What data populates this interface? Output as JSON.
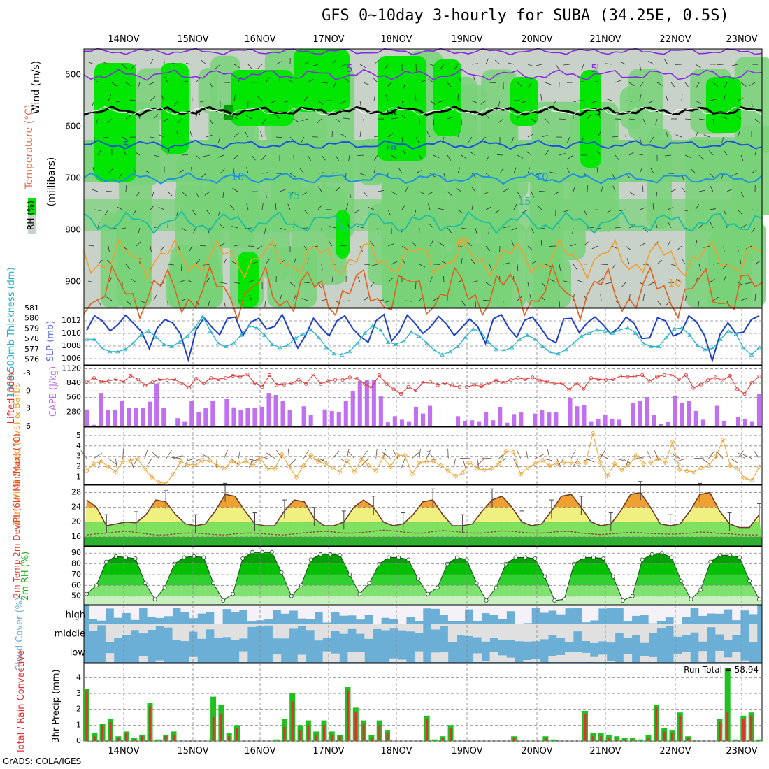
{
  "title": "GFS 0~10day 3-hourly for SUBA (34.25E, 0.5S)",
  "credit": "GrADS: COLA/IGES",
  "dates": [
    "14NOV",
    "15NOV",
    "16NOV",
    "17NOV",
    "18NOV",
    "19NOV",
    "20NOV",
    "21NOV",
    "22NOV",
    "23NOV"
  ],
  "colors": {
    "rh_light": "#c8d2c8",
    "rh_mid": "#78d278",
    "rh_high": "#00e600",
    "rh_top": "#00a000",
    "cape": "#c070f0",
    "precip_total": "#20c020",
    "precip_conv": "#e03030",
    "cloud_blue": "#6baed6",
    "cloud_gray": "#e0e0e0",
    "wind10": "#f0a030",
    "temp_fill_hot": "#f0a030",
    "temp_fill_warm": "#f0f080"
  },
  "chart_data": [
    {
      "panel": "upper_air",
      "type": "heatmap",
      "ylabel_parts": [
        "Wind (m/s)",
        "Temperature (°C)",
        "RH (%)"
      ],
      "ylabel_units": "(millibars)",
      "ylim": [
        950,
        450
      ],
      "yticks": [
        500,
        600,
        700,
        800,
        900
      ],
      "isotherm_labels": [
        "5",
        "5",
        "5",
        "FR",
        "FR",
        "FR",
        "5",
        "5",
        "10",
        "10",
        "15",
        "15",
        "20",
        "10"
      ]
    },
    {
      "panel": "thickness_slp",
      "type": "line",
      "ylabel_left": "1000-500mb Thickness (dm)",
      "ylabel_right": "SLP (mb)",
      "yticks_left": [
        576,
        577,
        578,
        579,
        580,
        581
      ],
      "yticks_right": [
        1006,
        1008,
        1010,
        1012
      ],
      "series": [
        {
          "name": "SLP (mb)",
          "values": [
            1010.5,
            1012.8,
            1012,
            1010.4,
            1011.4,
            1012.9,
            1011.6,
            1010.3,
            1007.6,
            1010.8,
            1012.2,
            1011.7,
            1009.9,
            1005.8,
            1010.6,
            1012.5,
            1011,
            1009.8,
            1012.4,
            1012.6,
            1009.7,
            1011.8,
            1012.4,
            1010.7,
            1011.1,
            1013,
            1010.2,
            1007.7,
            1009.7,
            1012.4,
            1010.9,
            1009.6,
            1012,
            1012.8,
            1010.8,
            1009.5,
            1008.6,
            1012,
            1013,
            1008.8,
            1010.3,
            1012.9,
            1011.6,
            1010,
            1011.1,
            1012.7,
            1011.5,
            1009.7,
            1011,
            1012.3,
            1011.1,
            1008.4,
            1012.3,
            1013,
            1010.8,
            1009.4,
            1012.1,
            1012.6,
            1011,
            1009.2,
            1008.5,
            1012.3,
            1012.4,
            1010.1,
            1011.7,
            1012.6,
            1011.4,
            1010,
            1010.9,
            1012.6,
            1011.6,
            1009.2,
            1009.3,
            1012.5,
            1012,
            1009.6,
            1010.1,
            1012.8,
            1011.8,
            1009.7,
            1005.7,
            1009.9,
            1011.7,
            1010,
            1010.2,
            1012.2,
            1012.8
          ]
        },
        {
          "name": "1000-500mb Thickness (dm)",
          "values": [
            578,
            578,
            577.1,
            576.8,
            576.8,
            577,
            577.6,
            578.4,
            578.8,
            578.2,
            577.5,
            577.3,
            577.7,
            578.3,
            579.1,
            580.2,
            578.8,
            577.6,
            577.3,
            577.6,
            578.4,
            579.3,
            579.1,
            578.4,
            577.5,
            577.2,
            577.4,
            578.1,
            578.5,
            578.9,
            578.2,
            577.2,
            576.6,
            576.5,
            576.8,
            577.6,
            578.6,
            579.3,
            578.9,
            577.7,
            577.5,
            577.8,
            578.7,
            578.3,
            577.6,
            576.9,
            576.5,
            576.8,
            577.3,
            578.2,
            579,
            578.7,
            577.7,
            577,
            576.9,
            577.2,
            578,
            578.4,
            578,
            577.3,
            576.7,
            576.6,
            577,
            577.6,
            578.3,
            578.6,
            578.9,
            578.8,
            578.6,
            578.9,
            579.1,
            578.6,
            577.6,
            577.3,
            577.3,
            578.2,
            579,
            579.1,
            578.4,
            577.4,
            577,
            577.1,
            578,
            578.8,
            578.5,
            577.1,
            576.5,
            577.2
          ]
        }
      ]
    },
    {
      "panel": "lifted_cape",
      "type": "bar",
      "ylabel_left": "Lifted Index",
      "ylabel_right": "CAPE (J/kg)",
      "yticks_left": [
        -3,
        0,
        3,
        6
      ],
      "yticks_right": [
        280,
        560,
        840,
        1120
      ],
      "series": [
        {
          "name": "CAPE (J/kg)",
          "values": [
            330,
            30,
            650,
            320,
            320,
            500,
            360,
            360,
            360,
            480,
            830,
            360,
            0,
            160,
            100,
            500,
            280,
            360,
            490,
            0,
            530,
            370,
            320,
            360,
            360,
            380,
            650,
            610,
            500,
            320,
            0,
            390,
            220,
            0,
            330,
            300,
            280,
            500,
            680,
            880,
            900,
            900,
            580,
            80,
            200,
            130,
            100,
            380,
            250,
            400,
            0,
            0,
            0,
            200,
            110,
            120,
            100,
            280,
            120,
            380,
            70,
            240,
            280,
            0,
            250,
            320,
            270,
            270,
            0,
            550,
            390,
            420,
            100,
            140,
            230,
            150,
            130,
            0,
            450,
            500,
            570,
            230,
            50,
            90,
            600,
            450,
            500,
            300,
            130,
            0,
            400,
            110,
            0,
            180,
            150,
            100,
            630
          ]
        },
        {
          "name": "Lifted Index",
          "values": [
            -1.5,
            -2.2,
            -1.6,
            -1.7,
            -2,
            -1.6,
            -2.6,
            -2,
            -0.9,
            -1.5,
            -2,
            -1.9,
            -2,
            -1.3,
            -0.6,
            -2.1,
            -1.3,
            -2.2,
            -2,
            -2.2,
            -2.6,
            -2.4,
            -2.8,
            -1.3,
            -0.7,
            -2.7,
            -1,
            -1.1,
            -1.3,
            -1.9,
            -1.2,
            -2.8,
            -1.2,
            -1.7,
            -1.9,
            -1.9,
            -2.3,
            -2.1,
            -1.2,
            -0.6,
            -2.7,
            -1.2,
            -0.3,
            0.5,
            -0.7,
            -0.1,
            -1.4,
            -1.5,
            -1,
            -1.3,
            -0.9,
            -0.7,
            -0.7,
            -1,
            -0.8,
            -1.3,
            -1.8,
            -1.4,
            -1.9,
            -2.2,
            -2,
            -2.3,
            -1.8,
            -1.6,
            -1.3,
            -1.3,
            -0.2,
            -1.3,
            -0.4,
            -2.2,
            -2,
            -1.9,
            -2,
            -2.5,
            -2.4,
            -2.5,
            -2.7,
            -1.7,
            -2.4,
            -2.7,
            -2.8,
            -2,
            -2.7,
            -0.5,
            -1.1,
            -1.9,
            -2.3,
            -1.8,
            -2.6,
            -0.3,
            0.5,
            -1.4,
            -2.5
          ]
        }
      ]
    },
    {
      "panel": "wind10",
      "type": "line",
      "ylabel": "10m Wind Speed (m/s) & Barbs",
      "yticks": [
        1,
        2,
        3,
        4,
        5
      ],
      "series": [
        {
          "name": "10m Wind Speed",
          "values": [
            1.6,
            2.3,
            2.5,
            2,
            1.5,
            2.5,
            2.6,
            2.8,
            1.8,
            1,
            0.5,
            0.4,
            1.3,
            2.5,
            2.2,
            2.2,
            2.6,
            2.6,
            2.1,
            1.8,
            2.5,
            2.3,
            2.5,
            2.2,
            2.8,
            1.8,
            1.8,
            3.2,
            2,
            1,
            2.1,
            3.1,
            2.5,
            2.3,
            1.9,
            1.5,
            2.6,
            1.5,
            2.7,
            2.1,
            1.6,
            2.9,
            2,
            3.1,
            3.1,
            1.3,
            2.4,
            2.5,
            2.5,
            2.1,
            1.6,
            1.1,
            1.4,
            2.4,
            1.8,
            1.7,
            1.8,
            2.3,
            3.5,
            3.4,
            1.3,
            1.9,
            2.3,
            2.6,
            2.1,
            2.3,
            2.4,
            2.4,
            2.3,
            2.4,
            5.2,
            2.4,
            1.1,
            2.3,
            1.7,
            2.2,
            3.1,
            2.3,
            2.4,
            2.8,
            2.4,
            4.4,
            1.7,
            1.6,
            1.5,
            1.9,
            2.1,
            3,
            4.6,
            2.1,
            1.8,
            0.9,
            0.7,
            2
          ]
        }
      ]
    },
    {
      "panel": "temp2m",
      "type": "area",
      "ylabel": "2m Temp 2m DewPt (6hr Min/Max) (°C)",
      "yticks": [
        16,
        20,
        24,
        28
      ],
      "series": [
        {
          "name": "2m Temp",
          "values": [
            26,
            24,
            19,
            19.5,
            20,
            19.8,
            22,
            26,
            25.5,
            22,
            19.5,
            19,
            19.5,
            23,
            27.5,
            27,
            23,
            19.5,
            19,
            19,
            23,
            26,
            25.5,
            21,
            19,
            19,
            20,
            24,
            26,
            24,
            20,
            19,
            19.5,
            22,
            25.5,
            26,
            22,
            19,
            19,
            19.5,
            23,
            26,
            27,
            24,
            20,
            19,
            19.5,
            23,
            27,
            27.5,
            24,
            20,
            19,
            19.5,
            23,
            27.5,
            28,
            24,
            19.5,
            19,
            19.5,
            23,
            27.5,
            28,
            23,
            19.5,
            18.5,
            18.5,
            22
          ]
        },
        {
          "name": "2m DewPt",
          "values": [
            16.5,
            16.8,
            17,
            17.3,
            17.5,
            17.2,
            16.8,
            16.5,
            16.5,
            16.8,
            17,
            17,
            16.8,
            16.6,
            16.5,
            16.8,
            17,
            17,
            16.8,
            16.6,
            16.5,
            16.8,
            17.1,
            17.3,
            17.5,
            17.3,
            17,
            17,
            17.2,
            17.5,
            17.8,
            17.6,
            17.3,
            17,
            17,
            17.4,
            17.7,
            17.5,
            17.2,
            17,
            17,
            17.3,
            17.6,
            17.5,
            17.2,
            17,
            17,
            17.2,
            17.5,
            17.4,
            17,
            16.8,
            16.6,
            16.8,
            17,
            17.2,
            17.1,
            16.9,
            16.8,
            16.7,
            16.8,
            17,
            17.3,
            17.2,
            16.9,
            16.8,
            16.6,
            16.5,
            16.5
          ]
        }
      ]
    },
    {
      "panel": "rh2m",
      "type": "area",
      "ylabel": "2m RH (%)",
      "yticks": [
        50,
        60,
        70,
        80,
        90
      ],
      "series": [
        {
          "name": "2m RH",
          "values": [
            52,
            60,
            82,
            87,
            86,
            85,
            62,
            47,
            58,
            80,
            86,
            87,
            86,
            62,
            46,
            52,
            85,
            91,
            91,
            91,
            72,
            50,
            60,
            84,
            89,
            89,
            88,
            70,
            52,
            62,
            80,
            86,
            86,
            84,
            66,
            52,
            58,
            80,
            86,
            84,
            62,
            46,
            58,
            80,
            86,
            86,
            85,
            68,
            46,
            47,
            80,
            86,
            86,
            85,
            68,
            46,
            50,
            84,
            89,
            90,
            86,
            64,
            47,
            56,
            82,
            88,
            88,
            86,
            64,
            47
          ]
        }
      ]
    },
    {
      "panel": "cloud",
      "type": "heatmap",
      "ylabel": "Cloud Cover (%)",
      "rows": [
        "high",
        "middle",
        "low"
      ]
    },
    {
      "panel": "precip",
      "type": "bar",
      "ylabel_left": "Total / Rain Convective",
      "ylabel_right": "3hr Precip (mm)",
      "yticks": [
        0,
        1,
        2,
        3,
        4
      ],
      "annotation": "Run Total = 58.94",
      "series": [
        {
          "name": "Total",
          "values": [
            3.3,
            0.5,
            1.1,
            1.4,
            0.3,
            0.6,
            0.2,
            0.4,
            2.4,
            0.1,
            0.4,
            0.6,
            0,
            0,
            0,
            0,
            2.8,
            2.3,
            0.5,
            1,
            0,
            0,
            0,
            0,
            0.1,
            1.4,
            3,
            1,
            1.3,
            0.6,
            1.3,
            0.6,
            0.4,
            3.4,
            2.1,
            1.3,
            0.4,
            1.3,
            0.7,
            0,
            0,
            0,
            0,
            1.6,
            0.1,
            0.3,
            1,
            0,
            0,
            0,
            0,
            0,
            0,
            0,
            0.3,
            0,
            0,
            0,
            0.3,
            0.1,
            0,
            0,
            0,
            1.9,
            0.5,
            0.5,
            0.4,
            0.3,
            0.2,
            0.2,
            0.1,
            0.4,
            2.3,
            0.8,
            0.7,
            1.8,
            0.3,
            0,
            0,
            0,
            1.4,
            4.6,
            0.1,
            1.6,
            1.8,
            0.1
          ]
        },
        {
          "name": "Convective",
          "values": [
            3.2,
            0.3,
            1,
            1.2,
            0.2,
            0.5,
            0.1,
            0.3,
            2.2,
            0,
            0.3,
            0.4,
            0,
            0,
            0,
            0,
            1.5,
            1.7,
            0.3,
            0.8,
            0,
            0,
            0,
            0,
            0,
            0.9,
            2.5,
            0.7,
            1,
            0.4,
            1,
            0.4,
            0.3,
            3.2,
            1.8,
            1.1,
            0.2,
            1,
            0.5,
            0,
            0,
            0,
            0,
            1.4,
            0,
            0.2,
            0.8,
            0,
            0,
            0,
            0,
            0,
            0,
            0,
            0.2,
            0,
            0,
            0,
            0.2,
            0,
            0,
            0,
            0,
            1.7,
            0.3,
            0.3,
            0.2,
            0.1,
            0.1,
            0.1,
            0,
            0.2,
            2.1,
            0.6,
            0.5,
            1.6,
            0.2,
            0,
            0,
            0,
            1.2,
            1.8,
            0,
            1.4,
            1.6,
            0
          ]
        }
      ]
    }
  ]
}
